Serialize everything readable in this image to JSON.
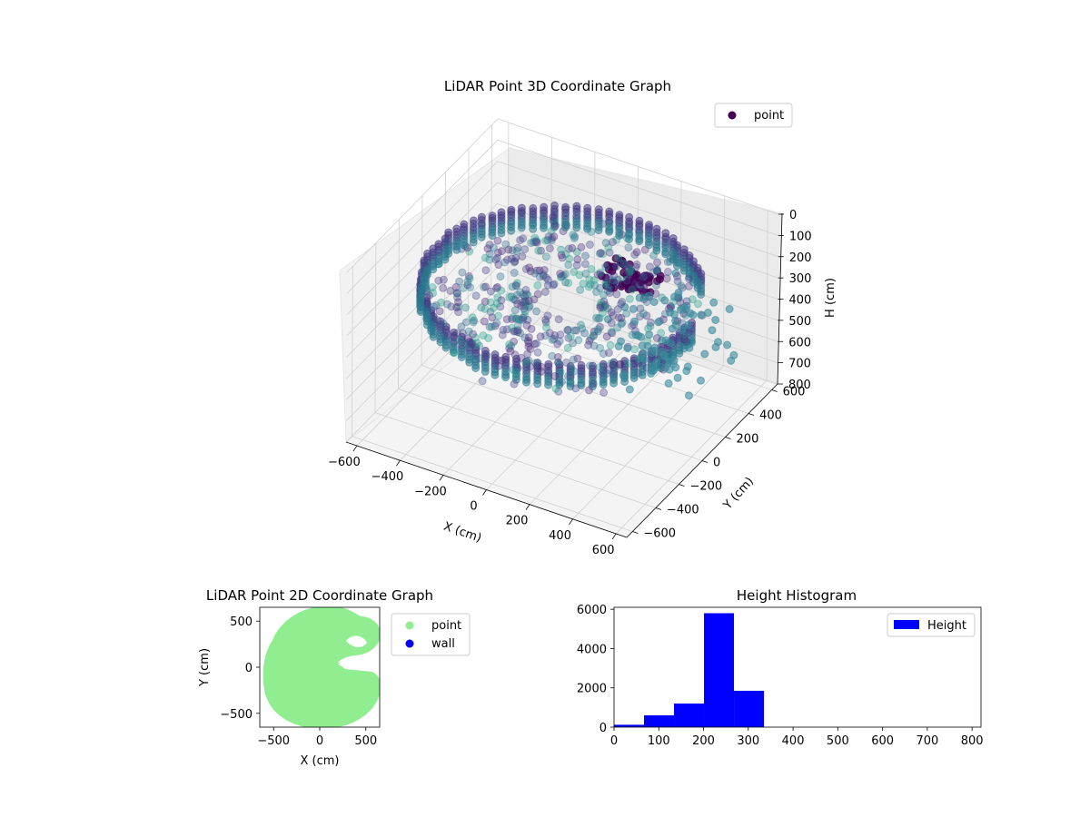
{
  "colors": {
    "hist_bar": "#0000ff",
    "scatter2d_point": "#90ee90",
    "scatter2d_wall": "#0000ff",
    "viridis_dark": "#440154",
    "viridis_mid": "#3b528b",
    "viridis_teal": "#21918c",
    "pane_fill": "#f2f2f2",
    "grid": "#d0d0d0"
  },
  "chart_data": [
    {
      "id": "lidar-3d",
      "type": "scatter",
      "title": "LiDAR Point 3D Coordinate Graph",
      "xlabel": "X (cm)",
      "ylabel": "Y (cm)",
      "zlabel": "H (cm)",
      "x_ticks": [
        "−600",
        "−400",
        "−200",
        "0",
        "200",
        "400",
        "600"
      ],
      "y_ticks": [
        "600",
        "400",
        "200",
        "0",
        "−200",
        "−400",
        "−600"
      ],
      "z_ticks": [
        "0",
        "100",
        "200",
        "300",
        "400",
        "500",
        "600",
        "700",
        "800"
      ],
      "xlim": [
        -650,
        650
      ],
      "ylim": [
        -650,
        650
      ],
      "zlim": [
        0,
        800
      ],
      "z_inverted": true,
      "legend": {
        "placement": "top-right",
        "entries": [
          {
            "label": "point",
            "color": "#440154"
          }
        ]
      },
      "colormap": "viridis",
      "description_shape": "ring of points (room wall) radius ~580 cm spanning heights ~200-300 cm, sparse scatter inside",
      "grid": true
    },
    {
      "id": "lidar-2d",
      "type": "scatter",
      "title": "LiDAR Point 2D Coordinate Graph",
      "xlabel": "X (cm)",
      "ylabel": "Y (cm)",
      "x_ticks": [
        "−500",
        "0",
        "500"
      ],
      "y_ticks": [
        "500",
        "0",
        "−500"
      ],
      "xlim": [
        -650,
        650
      ],
      "ylim": [
        -650,
        650
      ],
      "legend": {
        "placement": "outside-right",
        "entries": [
          {
            "label": "point",
            "color": "#90ee90"
          },
          {
            "label": "wall",
            "color": "#0000ff"
          }
        ]
      },
      "grid": false
    },
    {
      "id": "height-hist",
      "type": "bar",
      "title": "Height Histogram",
      "xlabel": "",
      "ylabel": "",
      "x_ticks": [
        "0",
        "100",
        "200",
        "300",
        "400",
        "500",
        "600",
        "700",
        "800"
      ],
      "y_ticks": [
        "0",
        "2000",
        "4000",
        "6000"
      ],
      "xlim": [
        0,
        820
      ],
      "ylim": [
        0,
        6100
      ],
      "bins": [
        {
          "start": 0,
          "end": 67,
          "value": 120
        },
        {
          "start": 67,
          "end": 134,
          "value": 600
        },
        {
          "start": 134,
          "end": 201,
          "value": 1200
        },
        {
          "start": 201,
          "end": 268,
          "value": 5800
        },
        {
          "start": 268,
          "end": 335,
          "value": 1850
        },
        {
          "start": 335,
          "end": 402,
          "value": 0
        },
        {
          "start": 402,
          "end": 469,
          "value": 0
        },
        {
          "start": 469,
          "end": 536,
          "value": 0
        },
        {
          "start": 536,
          "end": 603,
          "value": 0
        },
        {
          "start": 603,
          "end": 670,
          "value": 0
        },
        {
          "start": 670,
          "end": 737,
          "value": 0
        },
        {
          "start": 737,
          "end": 804,
          "value": 0
        }
      ],
      "legend": {
        "placement": "top-right",
        "entries": [
          {
            "label": "Height",
            "color": "#0000ff"
          }
        ]
      },
      "grid": false
    }
  ]
}
